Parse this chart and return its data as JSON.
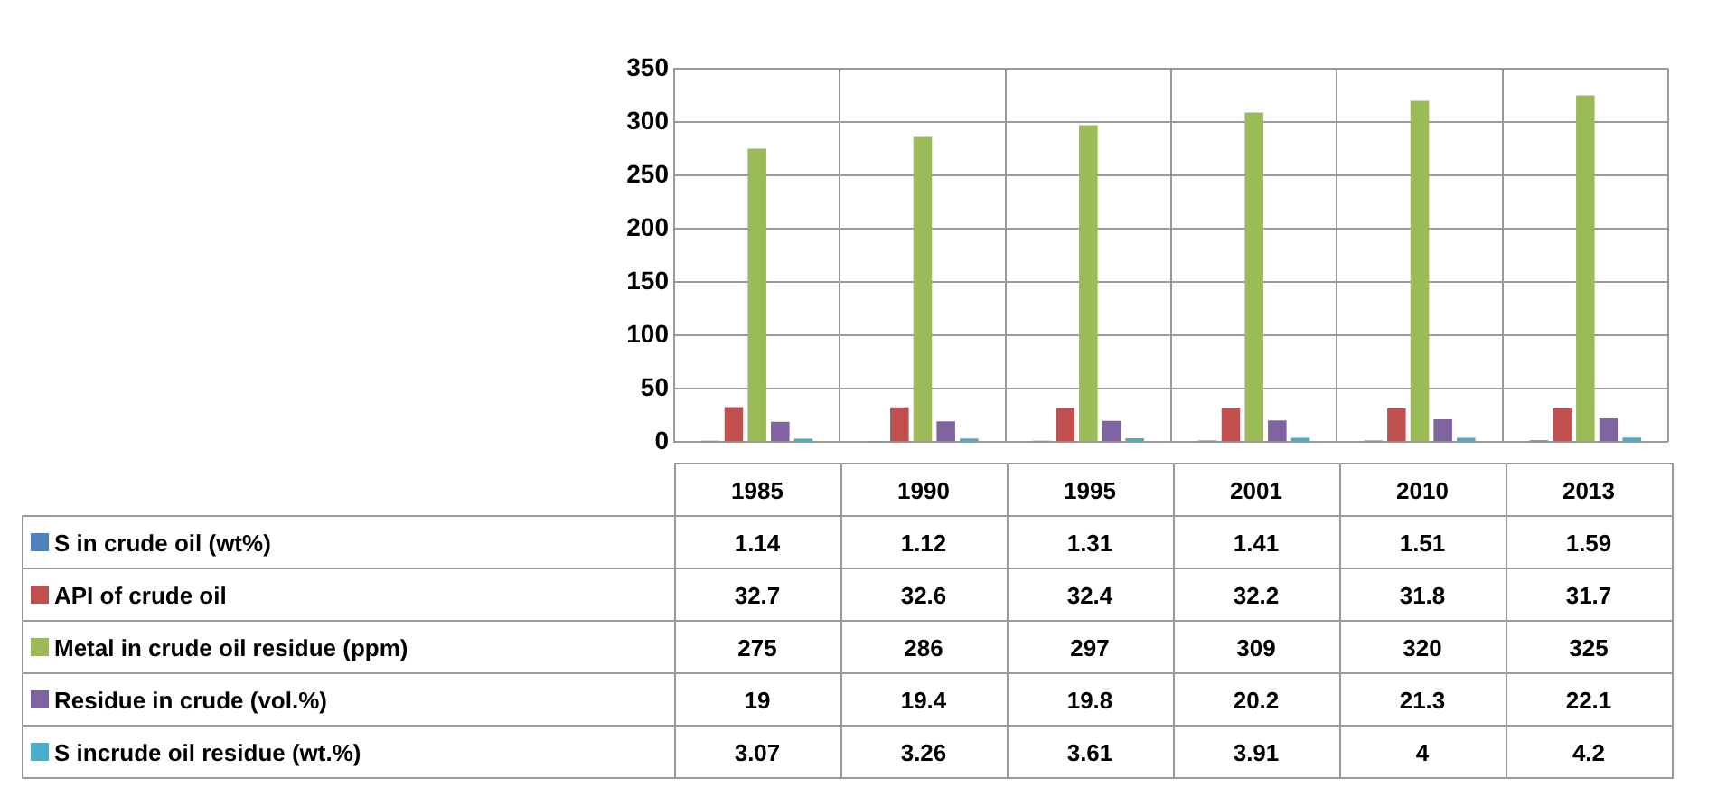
{
  "chart_data": {
    "type": "bar",
    "categories": [
      "1985",
      "1990",
      "1995",
      "2001",
      "2010",
      "2013"
    ],
    "series": [
      {
        "name": "S in crude oil (wt%)",
        "color": "#4f81bd",
        "values": [
          1.14,
          1.12,
          1.31,
          1.41,
          1.51,
          1.59
        ]
      },
      {
        "name": "API of crude oil",
        "color": "#c0504d",
        "values": [
          32.7,
          32.6,
          32.4,
          32.2,
          31.8,
          31.7
        ]
      },
      {
        "name": "Metal in crude oil residue (ppm)",
        "color": "#9bbb59",
        "values": [
          275,
          286,
          297,
          309,
          320,
          325
        ]
      },
      {
        "name": "Residue in crude (vol.%)",
        "color": "#8064a2",
        "values": [
          19,
          19.4,
          19.8,
          20.2,
          21.3,
          22.1
        ]
      },
      {
        "name": "S incrude oil residue (wt.%)",
        "color": "#4bacc6",
        "values": [
          3.07,
          3.26,
          3.61,
          3.91,
          4,
          4.2
        ]
      }
    ],
    "ylim": [
      0,
      350
    ],
    "yticks": [
      0,
      50,
      100,
      150,
      200,
      250,
      300,
      350
    ],
    "grid": true,
    "data_labels": true,
    "legend": "bottom"
  }
}
